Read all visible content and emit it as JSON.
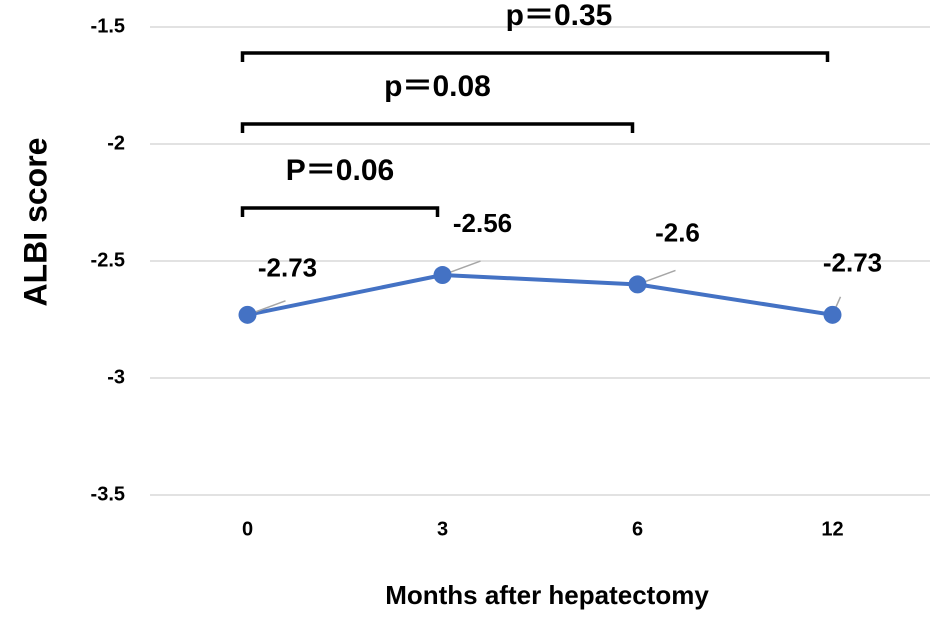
{
  "chart_data": {
    "type": "line",
    "y_label": "ALBI score",
    "x_label": "Months after hepatectomy",
    "categories": [
      "0",
      "3",
      "6",
      "12"
    ],
    "series": [
      {
        "name": "ALBI score",
        "color": "#4472c4",
        "values": [
          -2.73,
          -2.56,
          -2.6,
          -2.73
        ]
      }
    ],
    "ylim": [
      -3.5,
      -1.5
    ],
    "yticks": [
      -3.5,
      -3,
      -2.5,
      -2,
      -1.5
    ],
    "grid": true,
    "annotations": [
      "P＝0.06",
      "p＝0.08",
      "p＝0.35"
    ]
  }
}
